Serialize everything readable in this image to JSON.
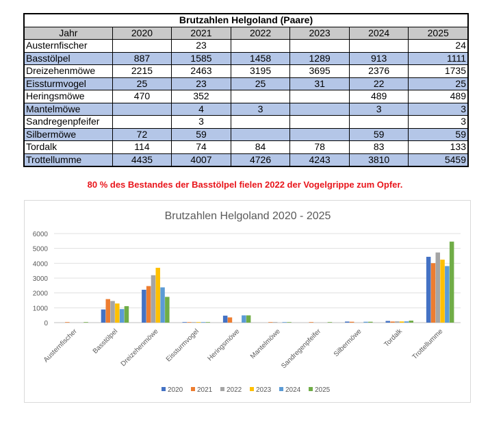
{
  "table": {
    "title": "Brutzahlen  Helgoland (Paare)",
    "header": [
      "Jahr",
      "2020",
      "2021",
      "2022",
      "2023",
      "2024",
      "2025"
    ],
    "rows": [
      [
        "Austernfischer",
        "",
        "23",
        "",
        "",
        "",
        "24"
      ],
      [
        "Basstölpel",
        "887",
        "1585",
        "1458",
        "1289",
        "913",
        "1111"
      ],
      [
        "Dreizehenmöwe",
        "2215",
        "2463",
        "3195",
        "3695",
        "2376",
        "1735"
      ],
      [
        "Eissturmvogel",
        "25",
        "23",
        "25",
        "31",
        "22",
        "25"
      ],
      [
        "Heringsmöwe",
        "470",
        "352",
        "",
        "",
        "489",
        "489"
      ],
      [
        "Mantelmöwe",
        "",
        "4",
        "3",
        "",
        "3",
        "3"
      ],
      [
        "Sandregenpfeifer",
        "",
        "3",
        "",
        "",
        "",
        "3"
      ],
      [
        "Silbermöwe",
        "72",
        "59",
        "",
        "",
        "59",
        "59"
      ],
      [
        "Tordalk",
        "114",
        "74",
        "84",
        "78",
        "83",
        "133"
      ],
      [
        "Trottellumme",
        "4435",
        "4007",
        "4726",
        "4243",
        "3810",
        "5459"
      ]
    ]
  },
  "note": "80 % des Bestandes der Basstölpel fielen 2022 der Vogelgrippe zum Opfer.",
  "chart_data": {
    "type": "bar",
    "title": "Brutzahlen Helgoland 2020 - 2025",
    "categories": [
      "Austernfischer",
      "Basstölpel",
      "Dreizehenmöwe",
      "Eissturmvogel",
      "Heringsmöwe",
      "Mantelmöwe",
      "Sandregenpfeifer",
      "Silbermöwe",
      "Tordalk",
      "Trottellumme"
    ],
    "series": [
      {
        "name": "2020",
        "color": "#4472c4",
        "values": [
          null,
          887,
          2215,
          25,
          470,
          null,
          null,
          72,
          114,
          4435
        ]
      },
      {
        "name": "2021",
        "color": "#ed7d31",
        "values": [
          23,
          1585,
          2463,
          23,
          352,
          4,
          3,
          59,
          74,
          4007
        ]
      },
      {
        "name": "2022",
        "color": "#a5a5a5",
        "values": [
          null,
          1458,
          3195,
          25,
          null,
          3,
          null,
          null,
          84,
          4726
        ]
      },
      {
        "name": "2023",
        "color": "#ffc000",
        "values": [
          null,
          1289,
          3695,
          31,
          null,
          null,
          null,
          null,
          78,
          4243
        ]
      },
      {
        "name": "2024",
        "color": "#5b9bd5",
        "values": [
          null,
          913,
          2376,
          22,
          489,
          3,
          null,
          59,
          83,
          3810
        ]
      },
      {
        "name": "2025",
        "color": "#70ad47",
        "values": [
          24,
          1111,
          1735,
          25,
          489,
          3,
          3,
          59,
          133,
          5459
        ]
      }
    ],
    "yticks": [
      "0",
      "1000",
      "2000",
      "3000",
      "4000",
      "5000",
      "6000"
    ],
    "ylim": [
      0,
      6000
    ],
    "grid": true,
    "legend": "bottom"
  }
}
